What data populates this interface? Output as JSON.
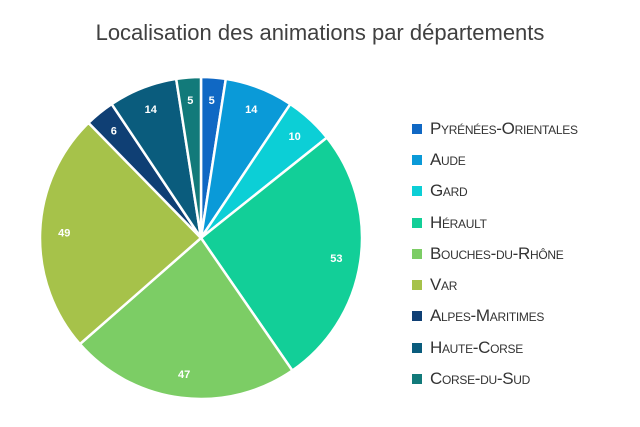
{
  "chart_data": {
    "type": "pie",
    "title": "Localisation des animations par départements",
    "categories": [
      "Pyrénées-Orientales",
      "Aude",
      "Gard",
      "Hérault",
      "Bouches-du-Rhône",
      "Var",
      "Alpes-Maritimes",
      "Haute-Corse",
      "Corse-du-Sud"
    ],
    "values": [
      5,
      14,
      10,
      53,
      47,
      49,
      6,
      14,
      5
    ],
    "data_labels": [
      "5",
      "14",
      "10",
      "53",
      "47",
      "49",
      "6",
      "14",
      "5"
    ],
    "colors": [
      "#1068c4",
      "#0a9ad8",
      "#0ccfd6",
      "#12cf98",
      "#7ccd65",
      "#a6c24a",
      "#0f3f74",
      "#0a5c7d",
      "#127a7a"
    ],
    "legend_position": "right",
    "start_angle": "top, clockwise"
  }
}
